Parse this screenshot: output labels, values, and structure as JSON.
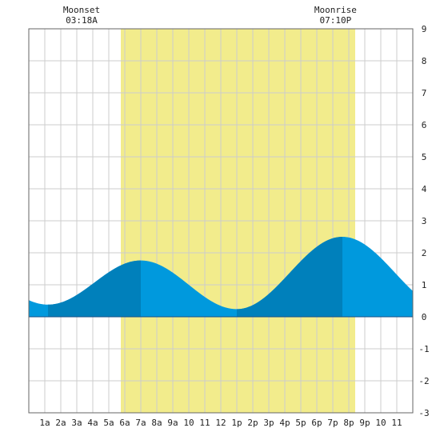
{
  "chart_data": {
    "type": "area",
    "title": "",
    "xlabel": "",
    "ylabel": "",
    "xlim": [
      0,
      24
    ],
    "ylim": [
      -3,
      9
    ],
    "grid": true,
    "x_tick_labels": [
      "1a",
      "2a",
      "3a",
      "4a",
      "5a",
      "6a",
      "7a",
      "8a",
      "9a",
      "10",
      "11",
      "12",
      "1p",
      "2p",
      "3p",
      "4p",
      "5p",
      "6p",
      "7p",
      "8p",
      "9p",
      "10",
      "11"
    ],
    "y_ticks": [
      -3,
      -2,
      -1,
      0,
      1,
      2,
      3,
      4,
      5,
      6,
      7,
      8,
      9
    ],
    "daylight": {
      "start": 5.75,
      "end": 20.4,
      "color": "#f2ec8c"
    },
    "annotations": [
      {
        "label": "Moonset",
        "time": "03:18A",
        "x": 3.3
      },
      {
        "label": "Moonrise",
        "time": "07:10P",
        "x": 19.17
      }
    ],
    "extrema": [
      {
        "type": "low",
        "x": 1.2,
        "y": 0.38
      },
      {
        "type": "high",
        "x": 7.0,
        "y": 1.76
      },
      {
        "type": "low",
        "x": 13.0,
        "y": 0.24
      },
      {
        "type": "high",
        "x": 19.6,
        "y": 2.5
      }
    ],
    "shade_bands": [
      [
        1.2,
        7.0
      ],
      [
        13.0,
        19.6
      ]
    ],
    "colors": {
      "water": "#0099dd",
      "water_dark": "#0080bb",
      "grid": "#cccccc",
      "zero_line": "#1a4f86"
    }
  }
}
